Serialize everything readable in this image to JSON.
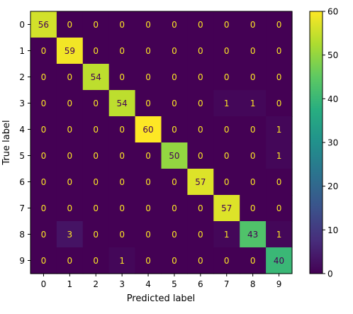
{
  "chart_data": {
    "type": "heatmap",
    "title": "",
    "xlabel": "Predicted label",
    "ylabel": "True label",
    "x_categories": [
      "0",
      "1",
      "2",
      "3",
      "4",
      "5",
      "6",
      "7",
      "8",
      "9"
    ],
    "y_categories": [
      "0",
      "1",
      "2",
      "3",
      "4",
      "5",
      "6",
      "7",
      "8",
      "9"
    ],
    "matrix": [
      [
        56,
        0,
        0,
        0,
        0,
        0,
        0,
        0,
        0,
        0
      ],
      [
        0,
        59,
        0,
        0,
        0,
        0,
        0,
        0,
        0,
        0
      ],
      [
        0,
        0,
        54,
        0,
        0,
        0,
        0,
        0,
        0,
        0
      ],
      [
        0,
        0,
        0,
        54,
        0,
        0,
        0,
        1,
        1,
        0
      ],
      [
        0,
        0,
        0,
        0,
        60,
        0,
        0,
        0,
        0,
        1
      ],
      [
        0,
        0,
        0,
        0,
        0,
        50,
        0,
        0,
        0,
        1
      ],
      [
        0,
        0,
        0,
        0,
        0,
        0,
        57,
        0,
        0,
        0
      ],
      [
        0,
        0,
        0,
        0,
        0,
        0,
        0,
        57,
        0,
        0
      ],
      [
        0,
        3,
        0,
        0,
        0,
        0,
        0,
        1,
        43,
        1
      ],
      [
        0,
        0,
        0,
        1,
        0,
        0,
        0,
        0,
        0,
        40
      ]
    ],
    "colormap": "viridis",
    "colorbar": {
      "range": [
        0,
        60
      ],
      "ticks": [
        "0",
        "10",
        "20",
        "30",
        "40",
        "50",
        "60"
      ]
    }
  }
}
